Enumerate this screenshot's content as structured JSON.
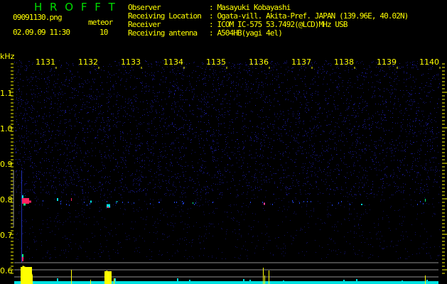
{
  "header": {
    "app_title": "H R O F F T",
    "filename": "09091130.png",
    "datetime": "02.09.09 11:30",
    "meteor_label": "meteor",
    "meteor_count": "10"
  },
  "info": [
    {
      "label": "Observer",
      "value": ": Masayuki Kobayashi"
    },
    {
      "label": "Receiving Location",
      "value": ": Ogata-vill. Akita-Pref. JAPAN (139.96E, 40.02N)"
    },
    {
      "label": "Receiver",
      "value": ": ICOM IC-575 53.7492(@LCD)MHz USB"
    },
    {
      "label": "Receiving antenna",
      "value": ": A504HB(yagi 4el)"
    }
  ],
  "y_axis": {
    "unit": "kHz",
    "ticks": [
      "1.1",
      "1.0",
      "0.9",
      "0.8",
      "0.7",
      "0.6"
    ]
  },
  "x_axis": {
    "ticks": [
      "1131",
      "1132",
      "1133",
      "1134",
      "1135",
      "1136",
      "1137",
      "1138",
      "1139",
      "1140"
    ]
  },
  "colors": {
    "text": "#ffff00",
    "title": "#00dd00",
    "noise": "#1a1a9a",
    "histogram_high": "#ffff00",
    "histogram_low": "#00e0e0",
    "guide_lines": "#909090"
  }
}
